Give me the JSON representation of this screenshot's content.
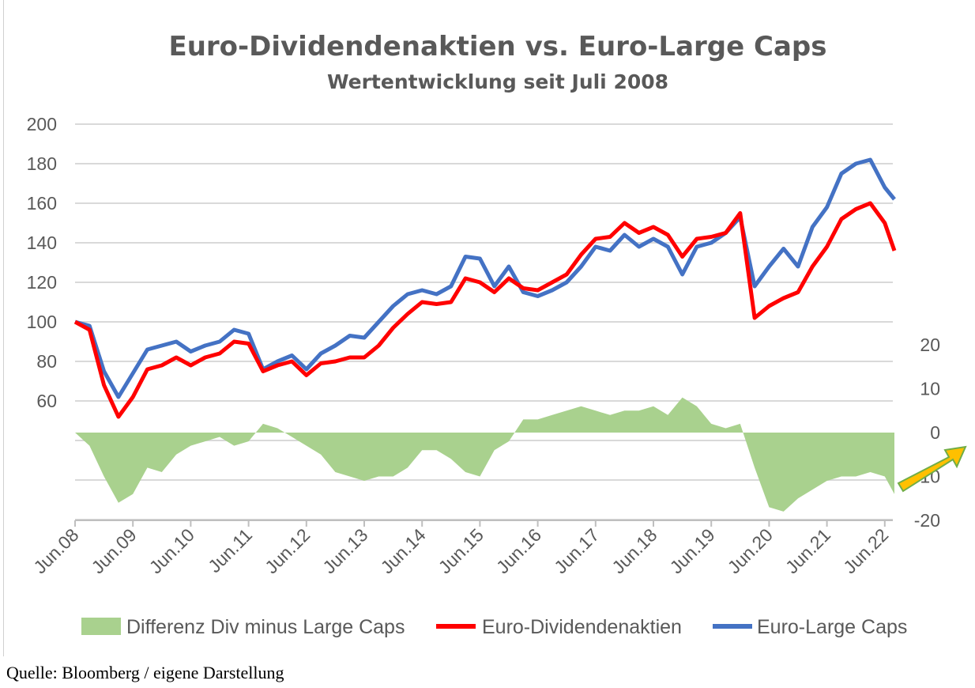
{
  "chart_data": {
    "type": "line",
    "title": "Euro-Dividendenaktien vs. Euro-Large Caps",
    "subtitle": "Wertentwicklung seit Juli 2008",
    "x": [
      "2008-06",
      "2008-09",
      "2008-12",
      "2009-03",
      "2009-06",
      "2009-09",
      "2009-12",
      "2010-03",
      "2010-06",
      "2010-09",
      "2010-12",
      "2011-03",
      "2011-06",
      "2011-09",
      "2011-12",
      "2012-03",
      "2012-06",
      "2012-09",
      "2012-12",
      "2013-03",
      "2013-06",
      "2013-09",
      "2013-12",
      "2014-03",
      "2014-06",
      "2014-09",
      "2014-12",
      "2015-03",
      "2015-06",
      "2015-09",
      "2015-12",
      "2016-03",
      "2016-06",
      "2016-09",
      "2016-12",
      "2017-03",
      "2017-06",
      "2017-09",
      "2017-12",
      "2018-03",
      "2018-06",
      "2018-09",
      "2018-12",
      "2019-03",
      "2019-06",
      "2019-09",
      "2019-12",
      "2020-03",
      "2020-06",
      "2020-09",
      "2020-12",
      "2021-03",
      "2021-06",
      "2021-09",
      "2021-12",
      "2022-03",
      "2022-06",
      "2022-08"
    ],
    "series": [
      {
        "name": "Differenz Div minus Large Caps",
        "type": "area",
        "axis": "right",
        "color": "#a9d18e",
        "values": [
          0,
          -3,
          -10,
          -16,
          -14,
          -8,
          -9,
          -5,
          -3,
          -2,
          -1,
          -3,
          -2,
          2,
          1,
          -1,
          -3,
          -5,
          -9,
          -10,
          -11,
          -10,
          -10,
          -8,
          -4,
          -4,
          -6,
          -9,
          -10,
          -4,
          -2,
          3,
          3,
          4,
          5,
          6,
          5,
          4,
          5,
          5,
          6,
          4,
          8,
          6,
          2,
          1,
          2,
          -8,
          -17,
          -18,
          -15,
          -13,
          -11,
          -10,
          -10,
          -9,
          -10,
          -14
        ]
      },
      {
        "name": "Euro-Dividendenaktien",
        "type": "line",
        "axis": "left",
        "color": "#ff0000",
        "values": [
          100,
          96,
          68,
          52,
          62,
          76,
          78,
          82,
          78,
          82,
          84,
          90,
          89,
          75,
          78,
          80,
          73,
          79,
          80,
          82,
          82,
          88,
          97,
          104,
          110,
          109,
          110,
          122,
          120,
          115,
          122,
          117,
          116,
          120,
          124,
          134,
          142,
          143,
          150,
          145,
          148,
          144,
          133,
          142,
          143,
          145,
          155,
          102,
          108,
          112,
          115,
          128,
          138,
          152,
          157,
          160,
          150,
          136
        ]
      },
      {
        "name": "Euro-Large Caps",
        "type": "line",
        "axis": "left",
        "color": "#4472c4",
        "values": [
          100,
          98,
          75,
          62,
          74,
          86,
          88,
          90,
          85,
          88,
          90,
          96,
          94,
          76,
          80,
          83,
          76,
          84,
          88,
          93,
          92,
          100,
          108,
          114,
          116,
          114,
          118,
          133,
          132,
          118,
          128,
          115,
          113,
          116,
          120,
          128,
          138,
          136,
          144,
          138,
          142,
          138,
          124,
          138,
          140,
          145,
          153,
          118,
          128,
          137,
          128,
          148,
          158,
          175,
          180,
          182,
          168,
          162
        ]
      }
    ],
    "x_tick_labels": [
      "Jun.08",
      "Jun.09",
      "Jun.10",
      "Jun.11",
      "Jun.12",
      "Jun.13",
      "Jun.14",
      "Jun.15",
      "Jun.16",
      "Jun.17",
      "Jun.18",
      "Jun.19",
      "Jun.20",
      "Jun.21",
      "Jun.22"
    ],
    "left_axis": {
      "ylim": [
        0,
        200
      ],
      "tick_labels": [
        "60",
        "80",
        "100",
        "120",
        "140",
        "160",
        "180",
        "200"
      ]
    },
    "right_axis": {
      "ylim": [
        -20,
        70
      ],
      "tick_labels": [
        "-20",
        "-10",
        "0",
        "10",
        "20"
      ]
    },
    "grid": true,
    "legend_placement": "bottom"
  },
  "annotation": {
    "arrow_color": "#ffc000",
    "arrow_outline": "#70ad47"
  },
  "source": "Quelle: Bloomberg / eigene Darstellung"
}
